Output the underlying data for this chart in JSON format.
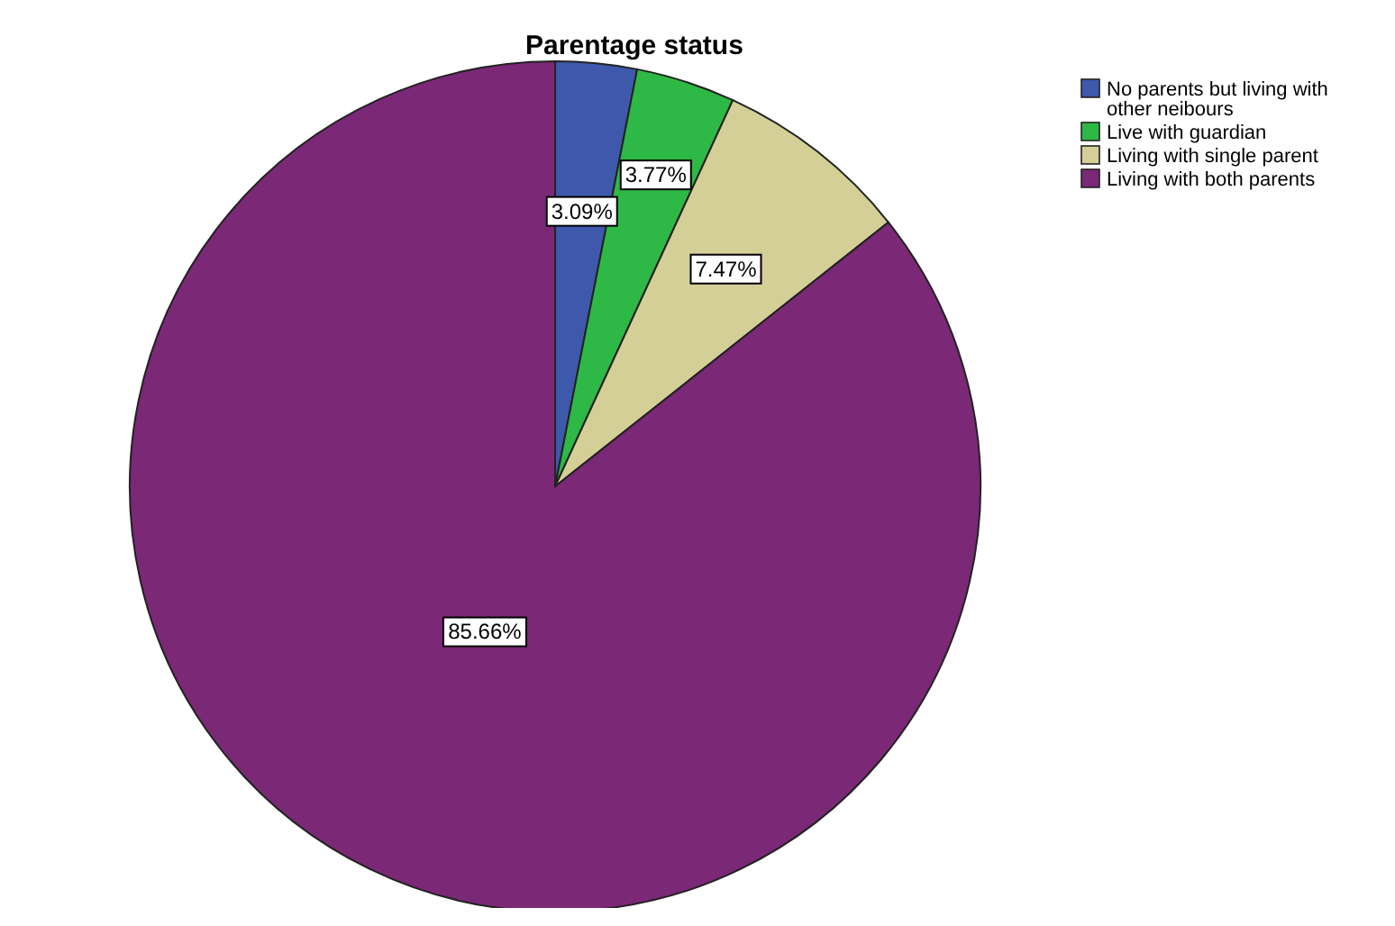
{
  "chart_data": {
    "type": "pie",
    "title": "Parentage status",
    "categories": [
      "No parents but living with other neibours",
      "Live with guardian",
      "Living with single parent",
      "Living with both parents"
    ],
    "values": [
      3.09,
      3.77,
      7.47,
      85.66
    ],
    "value_labels": [
      "3.09%",
      "3.77%",
      "7.47%",
      "85.66%"
    ],
    "colors": [
      "#3e58ac",
      "#2eb845",
      "#d4cf97",
      "#7b2877"
    ],
    "legend": "top right"
  }
}
